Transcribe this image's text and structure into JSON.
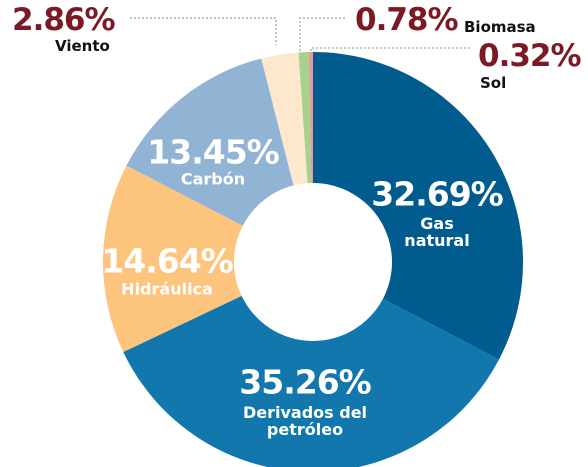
{
  "chart_data": {
    "type": "donut",
    "categories": [
      "Gas natural",
      "Derivados del petróleo",
      "Hidráulica",
      "Carbón",
      "Viento",
      "Biomasa",
      "Sol"
    ],
    "values": [
      32.69,
      35.26,
      14.64,
      13.45,
      2.86,
      0.78,
      0.32
    ],
    "value_labels": [
      "32.69%",
      "35.26%",
      "14.64%",
      "13.45%",
      "2.86%",
      "0.78%",
      "0.32%"
    ],
    "colors": [
      "#005b8f",
      "#1177ad",
      "#fdc47d",
      "#92b4d4",
      "#fde7cd",
      "#a9d18e",
      "#e39b9b"
    ]
  }
}
